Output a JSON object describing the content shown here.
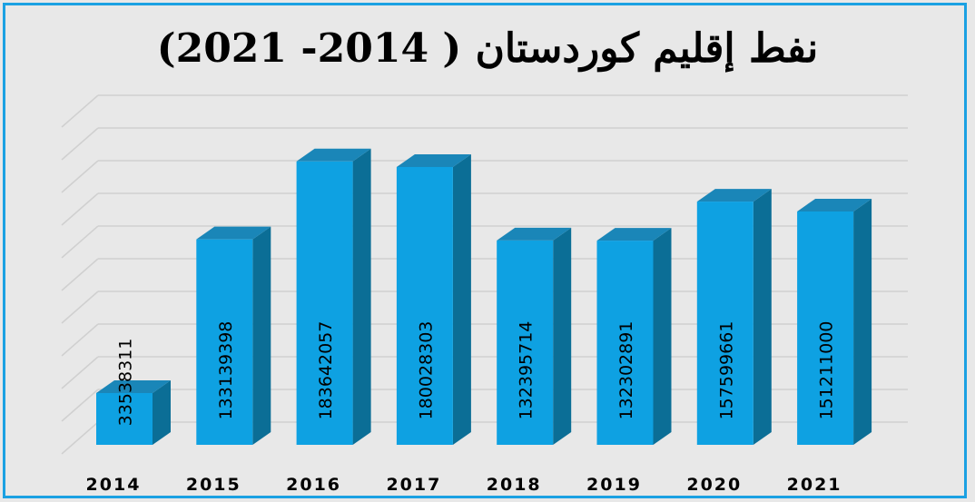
{
  "title": "نفط إقليم كوردستان ( 2014-  2021)",
  "chart_data": {
    "type": "bar",
    "title": "نفط إقليم كوردستان ( 2014-  2021)",
    "categories": [
      "2014",
      "2015",
      "2016",
      "2017",
      "2018",
      "2019",
      "2020",
      "2021"
    ],
    "values": [
      33538311,
      133139398,
      183642057,
      180028303,
      132395714,
      132302891,
      157599661,
      151211000
    ],
    "ylim": [
      0,
      200000000
    ],
    "grid": true,
    "legend": "none",
    "bar_color": "#0ea1e2",
    "bar_side_color": "#0b6e96",
    "bar_top_color": "#1a86b8"
  }
}
